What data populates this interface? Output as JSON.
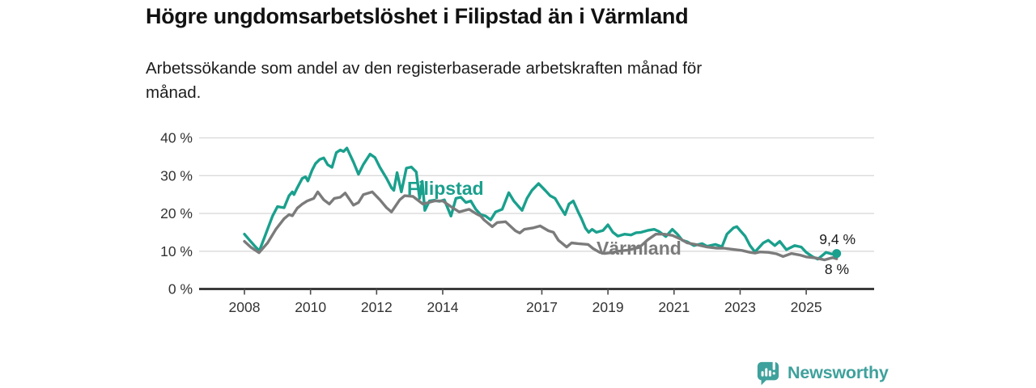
{
  "title": "Högre ungdomsarbetslöshet i Filipstad än i Värmland",
  "subtitle": {
    "line1": "Arbetssökande som andel av den registerbaserade arbetskraften månad för",
    "line2": "månad."
  },
  "footer": {
    "brand": "Newsworthy",
    "brand_color": "#3ea19c",
    "logo_icon": "bar-chart-speech-bubble-icon"
  },
  "chart_data": {
    "type": "line",
    "title": "Högre ungdomsarbetslöshet i Filipstad än i Värmland",
    "subtitle": "Arbetssökande som andel av den registerbaserade arbetskraften månad för månad.",
    "grid": "horizontal",
    "background": "#ffffff",
    "gridline_color": "#dadada",
    "axis_color": "#3b3b3b",
    "tick_text_color": "#333333",
    "y_axis": {
      "range": [
        0,
        40
      ],
      "ticks": [
        40,
        30,
        20,
        10,
        0
      ],
      "tick_labels": [
        "40 %",
        "30 %",
        "20 %",
        "10 %",
        "0 %"
      ],
      "suffix": " %"
    },
    "x_axis": {
      "range": [
        2008,
        2026
      ],
      "ticks": [
        2008,
        2010,
        2012,
        2014,
        2017,
        2019,
        2021,
        2023,
        2025
      ],
      "tick_labels": [
        "2008",
        "2010",
        "2012",
        "2014",
        "2017",
        "2019",
        "2021",
        "2023",
        "2025"
      ]
    },
    "legend_position": "inline-labels",
    "series": [
      {
        "name": "Filipstad",
        "key": "filipstad",
        "color": "#1aa08d",
        "end_label": "9,4 %",
        "end_value": 9.4,
        "end_marker": true,
        "points": [
          [
            2008.0,
            14.5
          ],
          [
            2008.15,
            13.0
          ],
          [
            2008.3,
            11.5
          ],
          [
            2008.45,
            10.1
          ],
          [
            2008.6,
            13.5
          ],
          [
            2008.85,
            19.3
          ],
          [
            2009.0,
            21.8
          ],
          [
            2009.2,
            21.5
          ],
          [
            2009.35,
            24.7
          ],
          [
            2009.45,
            25.7
          ],
          [
            2009.5,
            25.0
          ],
          [
            2009.6,
            26.8
          ],
          [
            2009.75,
            29.3
          ],
          [
            2009.85,
            29.7
          ],
          [
            2009.92,
            28.6
          ],
          [
            2010.05,
            31.5
          ],
          [
            2010.15,
            33.2
          ],
          [
            2010.28,
            34.3
          ],
          [
            2010.4,
            34.7
          ],
          [
            2010.52,
            32.9
          ],
          [
            2010.65,
            32.2
          ],
          [
            2010.78,
            36.1
          ],
          [
            2010.9,
            36.8
          ],
          [
            2011.0,
            36.4
          ],
          [
            2011.1,
            37.3
          ],
          [
            2011.3,
            33.6
          ],
          [
            2011.45,
            30.4
          ],
          [
            2011.6,
            33.0
          ],
          [
            2011.8,
            35.7
          ],
          [
            2011.95,
            34.8
          ],
          [
            2012.1,
            32.2
          ],
          [
            2012.3,
            29.3
          ],
          [
            2012.45,
            26.8
          ],
          [
            2012.52,
            26.1
          ],
          [
            2012.62,
            30.8
          ],
          [
            2012.75,
            25.7
          ],
          [
            2012.9,
            32.0
          ],
          [
            2013.05,
            32.3
          ],
          [
            2013.2,
            31.0
          ],
          [
            2013.3,
            24.0
          ],
          [
            2013.38,
            28.5
          ],
          [
            2013.46,
            20.8
          ],
          [
            2013.6,
            23.3
          ],
          [
            2013.75,
            23.5
          ],
          [
            2013.9,
            23.2
          ],
          [
            2014.05,
            23.6
          ],
          [
            2014.25,
            19.3
          ],
          [
            2014.4,
            24.0
          ],
          [
            2014.55,
            24.3
          ],
          [
            2014.7,
            22.9
          ],
          [
            2014.85,
            23.3
          ],
          [
            2015.0,
            21.1
          ],
          [
            2015.15,
            19.7
          ],
          [
            2015.3,
            19.3
          ],
          [
            2015.45,
            18.3
          ],
          [
            2015.6,
            20.4
          ],
          [
            2015.8,
            21.1
          ],
          [
            2016.0,
            25.5
          ],
          [
            2016.15,
            23.3
          ],
          [
            2016.3,
            21.8
          ],
          [
            2016.4,
            20.8
          ],
          [
            2016.55,
            24.0
          ],
          [
            2016.7,
            26.1
          ],
          [
            2016.9,
            27.9
          ],
          [
            2017.1,
            26.1
          ],
          [
            2017.25,
            24.7
          ],
          [
            2017.4,
            24.0
          ],
          [
            2017.55,
            21.8
          ],
          [
            2017.7,
            19.7
          ],
          [
            2017.82,
            22.5
          ],
          [
            2017.95,
            23.3
          ],
          [
            2018.1,
            20.4
          ],
          [
            2018.2,
            18.6
          ],
          [
            2018.32,
            16.1
          ],
          [
            2018.42,
            15.0
          ],
          [
            2018.52,
            15.8
          ],
          [
            2018.65,
            15.0
          ],
          [
            2018.85,
            15.5
          ],
          [
            2019.0,
            17.0
          ],
          [
            2019.15,
            15.0
          ],
          [
            2019.3,
            14.0
          ],
          [
            2019.5,
            14.5
          ],
          [
            2019.7,
            14.3
          ],
          [
            2019.85,
            14.9
          ],
          [
            2020.0,
            15.0
          ],
          [
            2020.2,
            15.5
          ],
          [
            2020.4,
            15.8
          ],
          [
            2020.55,
            15.2
          ],
          [
            2020.75,
            13.9
          ],
          [
            2020.95,
            15.8
          ],
          [
            2021.1,
            14.5
          ],
          [
            2021.25,
            12.9
          ],
          [
            2021.4,
            12.5
          ],
          [
            2021.6,
            11.5
          ],
          [
            2021.85,
            12.0
          ],
          [
            2022.0,
            11.3
          ],
          [
            2022.25,
            11.8
          ],
          [
            2022.45,
            11.2
          ],
          [
            2022.6,
            14.5
          ],
          [
            2022.8,
            16.2
          ],
          [
            2022.9,
            16.5
          ],
          [
            2023.0,
            15.5
          ],
          [
            2023.15,
            14.0
          ],
          [
            2023.3,
            11.5
          ],
          [
            2023.45,
            9.8
          ],
          [
            2023.7,
            12.2
          ],
          [
            2023.85,
            12.9
          ],
          [
            2024.05,
            11.5
          ],
          [
            2024.2,
            12.6
          ],
          [
            2024.4,
            10.4
          ],
          [
            2024.65,
            11.5
          ],
          [
            2024.85,
            11.1
          ],
          [
            2025.0,
            9.7
          ],
          [
            2025.2,
            8.5
          ],
          [
            2025.35,
            7.9
          ],
          [
            2025.6,
            9.7
          ],
          [
            2025.8,
            9.2
          ],
          [
            2025.92,
            9.4
          ]
        ]
      },
      {
        "name": "Värmland",
        "key": "varmland",
        "color": "#7b7b7b",
        "end_label": "8 %",
        "end_value": 8.0,
        "end_marker": false,
        "points": [
          [
            2008.0,
            12.6
          ],
          [
            2008.2,
            11.0
          ],
          [
            2008.44,
            9.6
          ],
          [
            2008.7,
            12.2
          ],
          [
            2008.95,
            15.8
          ],
          [
            2009.2,
            18.6
          ],
          [
            2009.35,
            19.7
          ],
          [
            2009.45,
            19.4
          ],
          [
            2009.6,
            21.4
          ],
          [
            2009.75,
            22.5
          ],
          [
            2009.9,
            23.3
          ],
          [
            2010.1,
            24.0
          ],
          [
            2010.22,
            25.7
          ],
          [
            2010.4,
            23.6
          ],
          [
            2010.57,
            22.5
          ],
          [
            2010.72,
            24.0
          ],
          [
            2010.9,
            24.3
          ],
          [
            2011.05,
            25.4
          ],
          [
            2011.3,
            22.2
          ],
          [
            2011.45,
            22.9
          ],
          [
            2011.6,
            25.0
          ],
          [
            2011.87,
            25.7
          ],
          [
            2012.1,
            23.6
          ],
          [
            2012.3,
            21.5
          ],
          [
            2012.45,
            20.4
          ],
          [
            2012.7,
            23.6
          ],
          [
            2012.85,
            24.7
          ],
          [
            2013.1,
            24.5
          ],
          [
            2013.4,
            22.5
          ],
          [
            2013.75,
            23.3
          ],
          [
            2014.0,
            23.3
          ],
          [
            2014.3,
            21.5
          ],
          [
            2014.5,
            20.4
          ],
          [
            2014.8,
            21.1
          ],
          [
            2015.0,
            20.0
          ],
          [
            2015.15,
            19.3
          ],
          [
            2015.25,
            18.3
          ],
          [
            2015.5,
            16.5
          ],
          [
            2015.65,
            17.6
          ],
          [
            2015.9,
            17.8
          ],
          [
            2016.2,
            15.4
          ],
          [
            2016.33,
            14.8
          ],
          [
            2016.47,
            15.8
          ],
          [
            2016.75,
            16.2
          ],
          [
            2016.95,
            16.7
          ],
          [
            2017.2,
            15.4
          ],
          [
            2017.35,
            15.0
          ],
          [
            2017.5,
            12.9
          ],
          [
            2017.75,
            11.1
          ],
          [
            2017.9,
            12.2
          ],
          [
            2018.1,
            12.0
          ],
          [
            2018.4,
            11.8
          ],
          [
            2018.55,
            10.7
          ],
          [
            2018.75,
            9.7
          ],
          [
            2018.9,
            9.4
          ],
          [
            2019.1,
            9.6
          ],
          [
            2019.3,
            10.0
          ],
          [
            2019.6,
            10.3
          ],
          [
            2019.95,
            11.0
          ],
          [
            2020.2,
            13.0
          ],
          [
            2020.45,
            14.5
          ],
          [
            2020.7,
            14.5
          ],
          [
            2020.95,
            14.2
          ],
          [
            2021.2,
            13.2
          ],
          [
            2021.4,
            12.2
          ],
          [
            2021.7,
            11.7
          ],
          [
            2022.0,
            11.1
          ],
          [
            2022.3,
            10.8
          ],
          [
            2022.5,
            10.8
          ],
          [
            2022.77,
            10.5
          ],
          [
            2023.05,
            10.2
          ],
          [
            2023.3,
            9.7
          ],
          [
            2023.45,
            9.5
          ],
          [
            2023.6,
            9.8
          ],
          [
            2023.85,
            9.7
          ],
          [
            2024.1,
            9.3
          ],
          [
            2024.3,
            8.6
          ],
          [
            2024.55,
            9.4
          ],
          [
            2024.8,
            9.0
          ],
          [
            2025.0,
            8.5
          ],
          [
            2025.3,
            8.2
          ],
          [
            2025.55,
            7.7
          ],
          [
            2025.8,
            8.3
          ],
          [
            2025.92,
            8.0
          ]
        ]
      }
    ]
  }
}
